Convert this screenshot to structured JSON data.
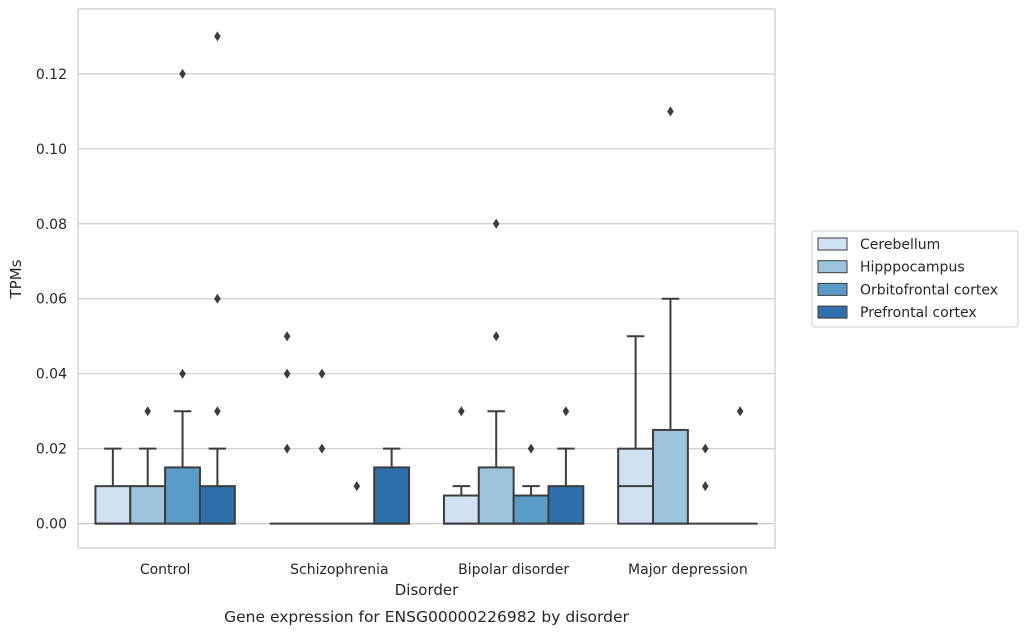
{
  "caption": "Gene expression for ENSG00000226982 by disorder",
  "chart_data": {
    "type": "box",
    "xlabel": "Disorder",
    "ylabel": "TPMs",
    "ylim": [
      -0.0065,
      0.1373
    ],
    "yticks": [
      0.0,
      0.02,
      0.04,
      0.06,
      0.08,
      0.1,
      0.12
    ],
    "ytick_labels": [
      "0.00",
      "0.02",
      "0.04",
      "0.06",
      "0.08",
      "0.10",
      "0.12"
    ],
    "grid": true,
    "legend_placement": "right",
    "categories": [
      "Control",
      "Schizophrenia",
      "Bipolar disorder",
      "Major depression"
    ],
    "series": [
      {
        "name": "Cerebellum",
        "color": "#d0e1f2",
        "boxes": [
          {
            "q1": 0.0,
            "median": 0.0,
            "q3": 0.01,
            "whisker_low": 0.0,
            "whisker_high": 0.02,
            "outliers": []
          },
          {
            "q1": 0.0,
            "median": 0.0,
            "q3": 0.0,
            "whisker_low": 0.0,
            "whisker_high": 0.0,
            "outliers": [
              0.02,
              0.04,
              0.05
            ]
          },
          {
            "q1": 0.0,
            "median": 0.0,
            "q3": 0.0075,
            "whisker_low": 0.0,
            "whisker_high": 0.01,
            "outliers": [
              0.03
            ]
          },
          {
            "q1": 0.0,
            "median": 0.01,
            "q3": 0.02,
            "whisker_low": 0.0,
            "whisker_high": 0.05,
            "outliers": []
          }
        ]
      },
      {
        "name": "Hipppocampus",
        "color": "#9dc4dd",
        "boxes": [
          {
            "q1": 0.0,
            "median": 0.0,
            "q3": 0.01,
            "whisker_low": 0.0,
            "whisker_high": 0.02,
            "outliers": [
              0.03
            ]
          },
          {
            "q1": 0.0,
            "median": 0.0,
            "q3": 0.0,
            "whisker_low": 0.0,
            "whisker_high": 0.0,
            "outliers": [
              0.02,
              0.04
            ]
          },
          {
            "q1": 0.0,
            "median": 0.0,
            "q3": 0.015,
            "whisker_low": 0.0,
            "whisker_high": 0.03,
            "outliers": [
              0.05,
              0.08
            ]
          },
          {
            "q1": 0.0,
            "median": 0.0,
            "q3": 0.025,
            "whisker_low": 0.0,
            "whisker_high": 0.06,
            "outliers": [
              0.11
            ]
          }
        ]
      },
      {
        "name": "Orbitofrontal cortex",
        "color": "#5b9bc8",
        "boxes": [
          {
            "q1": 0.0,
            "median": 0.0,
            "q3": 0.015,
            "whisker_low": 0.0,
            "whisker_high": 0.03,
            "outliers": [
              0.04,
              0.12
            ]
          },
          {
            "q1": 0.0,
            "median": 0.0,
            "q3": 0.0,
            "whisker_low": 0.0,
            "whisker_high": 0.0,
            "outliers": [
              0.01
            ]
          },
          {
            "q1": 0.0,
            "median": 0.0,
            "q3": 0.0075,
            "whisker_low": 0.0,
            "whisker_high": 0.01,
            "outliers": [
              0.02
            ]
          },
          {
            "q1": 0.0,
            "median": 0.0,
            "q3": 0.0,
            "whisker_low": 0.0,
            "whisker_high": 0.0,
            "outliers": [
              0.01,
              0.02
            ]
          }
        ]
      },
      {
        "name": "Prefrontal cortex",
        "color": "#2f6fab",
        "boxes": [
          {
            "q1": 0.0,
            "median": 0.0,
            "q3": 0.01,
            "whisker_low": 0.0,
            "whisker_high": 0.02,
            "outliers": [
              0.03,
              0.06,
              0.13
            ]
          },
          {
            "q1": 0.0,
            "median": 0.0,
            "q3": 0.015,
            "whisker_low": 0.0,
            "whisker_high": 0.02,
            "outliers": []
          },
          {
            "q1": 0.0,
            "median": 0.0,
            "q3": 0.01,
            "whisker_low": 0.0,
            "whisker_high": 0.02,
            "outliers": [
              0.03
            ]
          },
          {
            "q1": 0.0,
            "median": 0.0,
            "q3": 0.0,
            "whisker_low": 0.0,
            "whisker_high": 0.0,
            "outliers": [
              0.03
            ]
          }
        ]
      }
    ]
  }
}
